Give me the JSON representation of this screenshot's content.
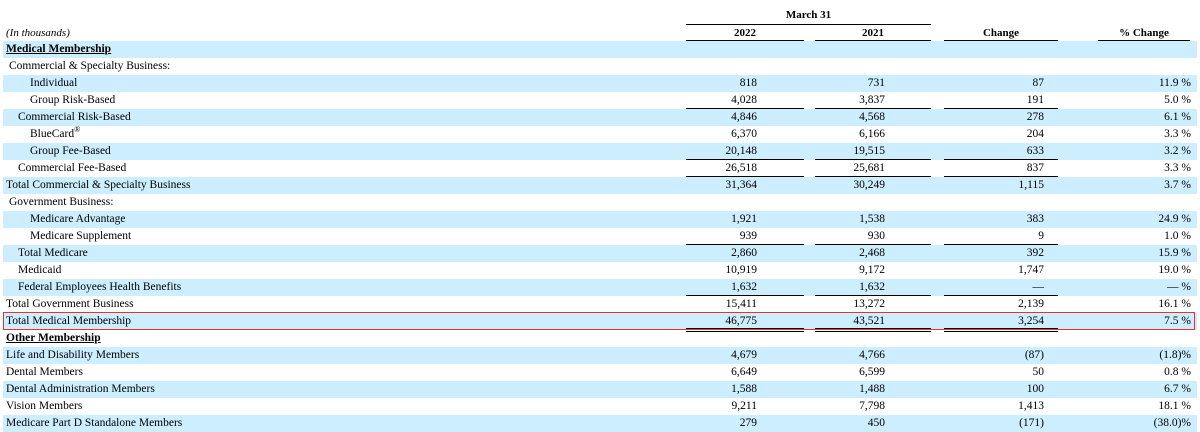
{
  "header": {
    "period_label": "March 31",
    "units_label": "(In thousands)",
    "col_2022": "2022",
    "col_2021": "2021",
    "col_change": "Change",
    "col_pct": "% Change"
  },
  "rows": [
    {
      "label": "Medical Membership",
      "type": "section"
    },
    {
      "label": "Commercial & Specialty Business:",
      "type": "group"
    },
    {
      "label": "Individual",
      "v2022": "818",
      "v2021": "731",
      "change": "87",
      "pct": "11.9 %"
    },
    {
      "label": "Group Risk-Based",
      "v2022": "4,028",
      "v2021": "3,837",
      "change": "191",
      "pct": "5.0 %"
    },
    {
      "label": "Commercial Risk-Based",
      "v2022": "4,846",
      "v2021": "4,568",
      "change": "278",
      "pct": "6.1 %"
    },
    {
      "label": "BlueCard",
      "label_sup": "®",
      "v2022": "6,370",
      "v2021": "6,166",
      "change": "204",
      "pct": "3.3 %"
    },
    {
      "label": "Group Fee-Based",
      "v2022": "20,148",
      "v2021": "19,515",
      "change": "633",
      "pct": "3.2 %"
    },
    {
      "label": "Commercial Fee-Based",
      "v2022": "26,518",
      "v2021": "25,681",
      "change": "837",
      "pct": "3.3 %"
    },
    {
      "label": "Total Commercial & Specialty Business",
      "v2022": "31,364",
      "v2021": "30,249",
      "change": "1,115",
      "pct": "3.7 %"
    },
    {
      "label": "Government Business:",
      "type": "group"
    },
    {
      "label": "Medicare Advantage",
      "v2022": "1,921",
      "v2021": "1,538",
      "change": "383",
      "pct": "24.9 %"
    },
    {
      "label": "Medicare Supplement",
      "v2022": "939",
      "v2021": "930",
      "change": "9",
      "pct": "1.0 %"
    },
    {
      "label": "Total Medicare",
      "v2022": "2,860",
      "v2021": "2,468",
      "change": "392",
      "pct": "15.9 %"
    },
    {
      "label": "Medicaid",
      "v2022": "10,919",
      "v2021": "9,172",
      "change": "1,747",
      "pct": "19.0 %"
    },
    {
      "label": "Federal Employees Health Benefits",
      "v2022": "1,632",
      "v2021": "1,632",
      "change": "—",
      "pct": "— %"
    },
    {
      "label": "Total Government Business",
      "v2022": "15,411",
      "v2021": "13,272",
      "change": "2,139",
      "pct": "16.1 %"
    },
    {
      "label": "Total Medical Membership",
      "v2022": "46,775",
      "v2021": "43,521",
      "change": "3,254",
      "pct": "7.5 %"
    },
    {
      "label": "Other Membership",
      "type": "section"
    },
    {
      "label": "Life and Disability Members",
      "v2022": "4,679",
      "v2021": "4,766",
      "change": "(87)",
      "pct": "(1.8)%"
    },
    {
      "label": "Dental Members",
      "v2022": "6,649",
      "v2021": "6,599",
      "change": "50",
      "pct": "0.8 %"
    },
    {
      "label": "Dental Administration Members",
      "v2022": "1,588",
      "v2021": "1,488",
      "change": "100",
      "pct": "6.7 %"
    },
    {
      "label": "Vision Members",
      "v2022": "9,211",
      "v2021": "7,798",
      "change": "1,413",
      "pct": "18.1 %"
    },
    {
      "label": "Medicare Part D Standalone Members",
      "v2022": "279",
      "v2021": "450",
      "change": "(171)",
      "pct": "(38.0)%"
    }
  ],
  "colors": {
    "row_shade": "#cceeff",
    "highlight_border": "#e8322d"
  }
}
